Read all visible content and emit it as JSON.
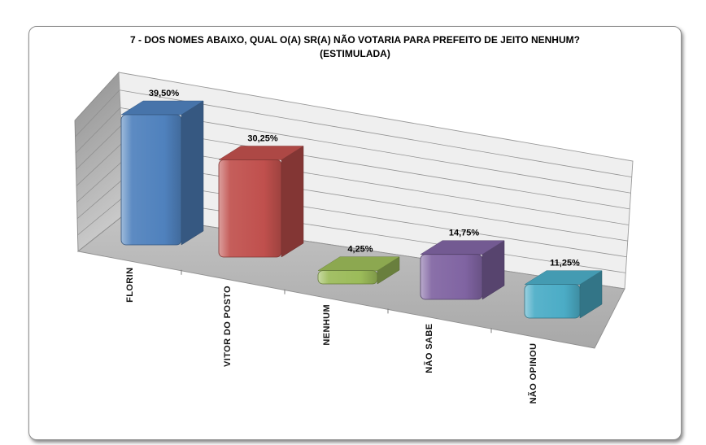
{
  "chart": {
    "title_line1": "7 - DOS NOMES ABAIXO, QUAL O(A) SR(A) NÃO VOTARIA PARA PREFEITO DE JEITO NENHUM?",
    "title_line2": "(ESTIMULADA)"
  },
  "chart_data": {
    "type": "bar",
    "style": "3d-column",
    "title": "7 - DOS NOMES ABAIXO, QUAL O(A) SR(A) NÃO VOTARIA PARA PREFEITO DE JEITO NENHUM? (ESTIMULADA)",
    "categories": [
      "FLORIN",
      "VITOR DO POSTO",
      "NENHUM",
      "NÃO SABE",
      "NÃO OPINOU"
    ],
    "values": [
      39.5,
      30.25,
      4.25,
      14.75,
      11.25
    ],
    "value_labels": [
      "39,50%",
      "30,25%",
      "4,25%",
      "14,75%",
      "11,25%"
    ],
    "colors": [
      "#4F81BD",
      "#C0504D",
      "#9BBB59",
      "#8064A2",
      "#4BACC6"
    ],
    "xlabel": "",
    "ylabel": "",
    "ylim": [
      0,
      40
    ],
    "gridline_interval": 5,
    "grid": true,
    "legend_position": "none",
    "decimal_separator": ","
  }
}
